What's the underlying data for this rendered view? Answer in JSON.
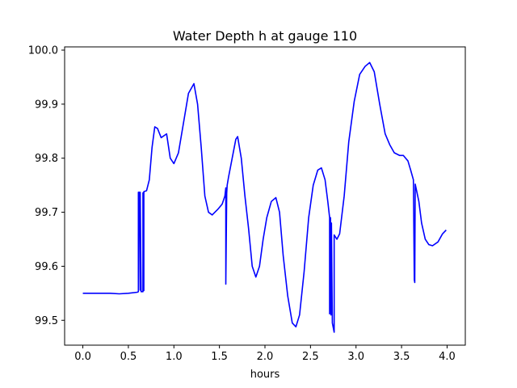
{
  "chart_data": {
    "type": "line",
    "title": "Water Depth h at gauge 110",
    "xlabel": "hours",
    "ylabel": "",
    "xlim": [
      -0.2,
      4.2
    ],
    "ylim": [
      99.454,
      100.006
    ],
    "xticks": [
      0.0,
      0.5,
      1.0,
      1.5,
      2.0,
      2.5,
      3.0,
      3.5,
      4.0
    ],
    "xtick_labels": [
      "0.0",
      "0.5",
      "1.0",
      "1.5",
      "2.0",
      "2.5",
      "3.0",
      "3.5",
      "4.0"
    ],
    "yticks": [
      99.5,
      99.6,
      99.7,
      99.8,
      99.9,
      100.0
    ],
    "ytick_labels": [
      "99.5",
      "99.6",
      "99.7",
      "99.8",
      "99.9",
      "100.0"
    ],
    "grid": false,
    "series": [
      {
        "color": "#0000ff",
        "points": [
          [
            0.0,
            99.55
          ],
          [
            0.1,
            99.55
          ],
          [
            0.2,
            99.55
          ],
          [
            0.3,
            99.55
          ],
          [
            0.4,
            99.549
          ],
          [
            0.5,
            99.55
          ],
          [
            0.6,
            99.552
          ],
          [
            0.61,
            99.553
          ],
          [
            0.61,
            99.737
          ],
          [
            0.62,
            99.737
          ],
          [
            0.63,
            99.556
          ],
          [
            0.63,
            99.737
          ],
          [
            0.64,
            99.553
          ],
          [
            0.66,
            99.553
          ],
          [
            0.66,
            99.736
          ],
          [
            0.67,
            99.555
          ],
          [
            0.67,
            99.738
          ],
          [
            0.7,
            99.74
          ],
          [
            0.73,
            99.76
          ],
          [
            0.76,
            99.82
          ],
          [
            0.79,
            99.858
          ],
          [
            0.82,
            99.855
          ],
          [
            0.86,
            99.838
          ],
          [
            0.92,
            99.845
          ],
          [
            0.96,
            99.8
          ],
          [
            1.0,
            99.79
          ],
          [
            1.05,
            99.81
          ],
          [
            1.1,
            99.86
          ],
          [
            1.16,
            99.92
          ],
          [
            1.22,
            99.938
          ],
          [
            1.26,
            99.9
          ],
          [
            1.3,
            99.82
          ],
          [
            1.34,
            99.73
          ],
          [
            1.38,
            99.7
          ],
          [
            1.42,
            99.695
          ],
          [
            1.48,
            99.705
          ],
          [
            1.53,
            99.715
          ],
          [
            1.56,
            99.73
          ],
          [
            1.57,
            99.745
          ],
          [
            1.57,
            99.567
          ],
          [
            1.58,
            99.735
          ],
          [
            1.585,
            99.75
          ],
          [
            1.6,
            99.765
          ],
          [
            1.64,
            99.8
          ],
          [
            1.68,
            99.835
          ],
          [
            1.7,
            99.84
          ],
          [
            1.74,
            99.8
          ],
          [
            1.78,
            99.73
          ],
          [
            1.82,
            99.67
          ],
          [
            1.86,
            99.6
          ],
          [
            1.9,
            99.58
          ],
          [
            1.94,
            99.6
          ],
          [
            1.98,
            99.65
          ],
          [
            2.02,
            99.69
          ],
          [
            2.07,
            99.72
          ],
          [
            2.12,
            99.727
          ],
          [
            2.16,
            99.7
          ],
          [
            2.2,
            99.62
          ],
          [
            2.25,
            99.545
          ],
          [
            2.3,
            99.495
          ],
          [
            2.34,
            99.488
          ],
          [
            2.38,
            99.51
          ],
          [
            2.43,
            99.59
          ],
          [
            2.48,
            99.69
          ],
          [
            2.53,
            99.75
          ],
          [
            2.58,
            99.778
          ],
          [
            2.62,
            99.782
          ],
          [
            2.66,
            99.76
          ],
          [
            2.69,
            99.72
          ],
          [
            2.71,
            99.69
          ],
          [
            2.71,
            99.512
          ],
          [
            2.72,
            99.69
          ],
          [
            2.725,
            99.51
          ],
          [
            2.73,
            99.68
          ],
          [
            2.74,
            99.495
          ],
          [
            2.76,
            99.478
          ],
          [
            2.76,
            99.658
          ],
          [
            2.79,
            99.65
          ],
          [
            2.82,
            99.66
          ],
          [
            2.87,
            99.73
          ],
          [
            2.92,
            99.83
          ],
          [
            2.98,
            99.905
          ],
          [
            3.04,
            99.955
          ],
          [
            3.1,
            99.97
          ],
          [
            3.15,
            99.977
          ],
          [
            3.2,
            99.96
          ],
          [
            3.26,
            99.9
          ],
          [
            3.32,
            99.845
          ],
          [
            3.37,
            99.825
          ],
          [
            3.42,
            99.81
          ],
          [
            3.48,
            99.805
          ],
          [
            3.52,
            99.805
          ],
          [
            3.57,
            99.795
          ],
          [
            3.6,
            99.778
          ],
          [
            3.63,
            99.76
          ],
          [
            3.64,
            99.575
          ],
          [
            3.645,
            99.57
          ],
          [
            3.65,
            99.752
          ],
          [
            3.69,
            99.72
          ],
          [
            3.72,
            99.68
          ],
          [
            3.76,
            99.65
          ],
          [
            3.8,
            99.64
          ],
          [
            3.84,
            99.638
          ],
          [
            3.9,
            99.645
          ],
          [
            3.95,
            99.66
          ],
          [
            3.99,
            99.667
          ]
        ]
      }
    ]
  }
}
